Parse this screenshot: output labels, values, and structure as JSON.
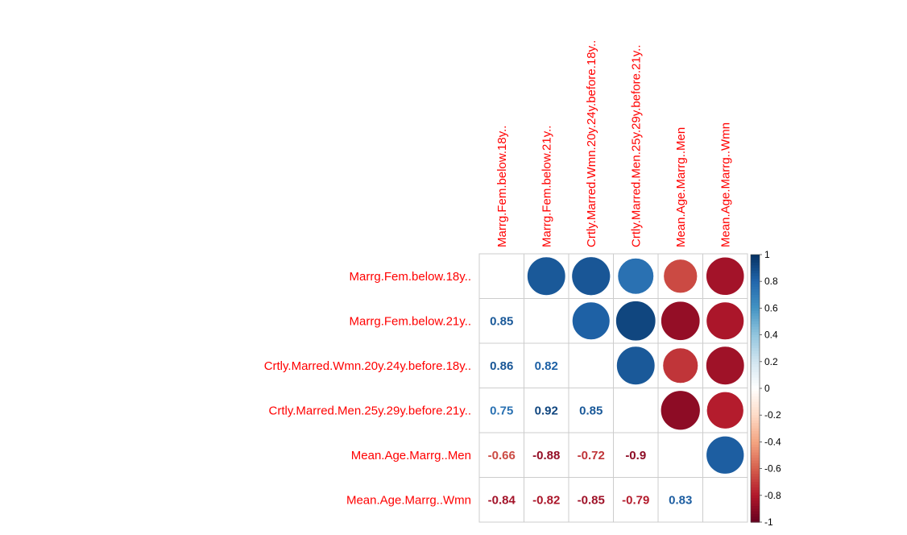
{
  "chart_data": {
    "type": "heatmap",
    "variables": [
      "Marrg.Fem.below.18y..",
      "Marrg.Fem.below.21y..",
      "Crtly.Marred.Wmn.20y.24y.before.18y..",
      "Crtly.Marred.Men.25y.29y.before.21y..",
      "Mean.Age.Marrg..Men",
      "Mean.Age.Marrg..Wmn"
    ],
    "matrix": [
      [
        1,
        0.85,
        0.86,
        0.75,
        -0.66,
        -0.84
      ],
      [
        0.85,
        1,
        0.82,
        0.92,
        -0.88,
        -0.82
      ],
      [
        0.86,
        0.82,
        1,
        0.85,
        -0.72,
        -0.85
      ],
      [
        0.75,
        0.92,
        0.85,
        1,
        -0.9,
        -0.79
      ],
      [
        -0.66,
        -0.88,
        -0.72,
        -0.9,
        1,
        0.83
      ],
      [
        -0.84,
        -0.82,
        -0.85,
        -0.79,
        0.83,
        1
      ]
    ],
    "lower_labels": [
      [
        "",
        "",
        "",
        "",
        "",
        ""
      ],
      [
        "0.85",
        "",
        "",
        "",
        "",
        ""
      ],
      [
        "0.86",
        "0.82",
        "",
        "",
        "",
        ""
      ],
      [
        "0.75",
        "0.92",
        "0.85",
        "",
        "",
        ""
      ],
      [
        "-0.66",
        "-0.88",
        "-0.72",
        "-0.9",
        "",
        ""
      ],
      [
        "-0.84",
        "-0.82",
        "-0.85",
        "-0.79",
        "0.83",
        ""
      ]
    ],
    "upper_method": "circle",
    "lower_method": "number",
    "diagonal": "blank",
    "label_color": "#ff0000",
    "colorbar": {
      "range": [
        -1,
        1
      ],
      "ticks": [
        "1",
        "0.8",
        "0.6",
        "0.4",
        "0.2",
        "0",
        "-0.2",
        "-0.4",
        "-0.6",
        "-0.8",
        "-1"
      ],
      "tick_values": [
        1,
        0.8,
        0.6,
        0.4,
        0.2,
        0,
        -0.2,
        -0.4,
        -0.6,
        -0.8,
        -1
      ],
      "colors": [
        "#67001F",
        "#B2182B",
        "#D6604D",
        "#F4A582",
        "#FDDBC7",
        "#FFFFFF",
        "#D1E5F0",
        "#92C5DE",
        "#4393C3",
        "#2166AC",
        "#053061"
      ]
    }
  }
}
